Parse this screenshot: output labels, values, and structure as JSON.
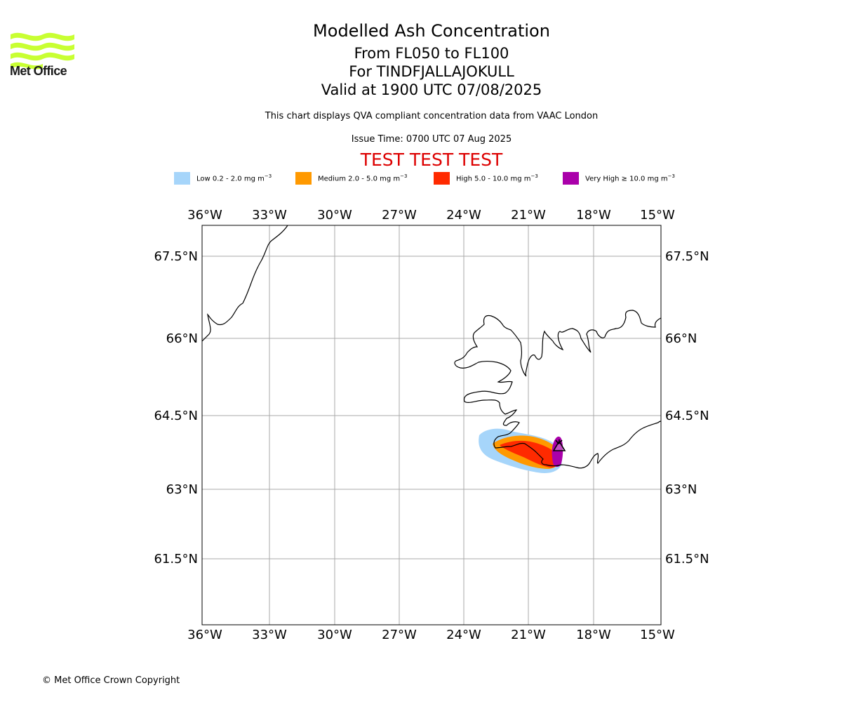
{
  "logo": {
    "text": "Met Office",
    "name": "met-office-logo"
  },
  "title": {
    "line1": "Modelled Ash Concentration",
    "line2": "From FL050 to FL100",
    "line3": "For TINDFJALLAJOKULL",
    "line4": "Valid at 1900 UTC 07/08/2025"
  },
  "subtitle": "This chart displays QVA compliant concentration data from VAAC London",
  "issue_time": "Issue Time: 0700 UTC 07 Aug 2025",
  "test_banner": "TEST TEST TEST",
  "legend": [
    {
      "label": "Low 0.2 - 2.0 mg m",
      "color": "#a6d5fa"
    },
    {
      "label": "Medium 2.0 - 5.0 mg m",
      "color": "#ff9900"
    },
    {
      "label": "High 5.0 - 10.0 mg m",
      "color": "#ff2a00"
    },
    {
      "label": "Very High  ≥  10.0 mg m",
      "color": "#aa00aa"
    }
  ],
  "legend_unit_exponent": "−3",
  "map": {
    "lon_ticks": [
      "36°W",
      "33°W",
      "30°W",
      "27°W",
      "24°W",
      "21°W",
      "18°W",
      "15°W"
    ],
    "lat_ticks": [
      "67.5°N",
      "66°N",
      "64.5°N",
      "63°N",
      "61.5°N"
    ],
    "volcano_symbol": "volcano-icon",
    "coast_color": "#000000",
    "grid_color": "#aaaaaa"
  },
  "copyright": "© Met Office Crown Copyright"
}
